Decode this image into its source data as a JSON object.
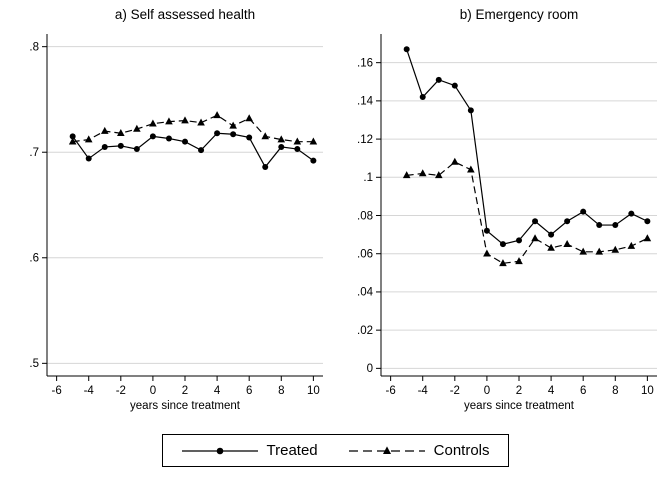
{
  "figure": {
    "legend": {
      "treated": "Treated",
      "controls": "Controls"
    }
  },
  "colors": {
    "line": "#000000",
    "grid": "#d6d6d6",
    "background": "#ffffff"
  },
  "chart_data": [
    {
      "type": "line",
      "title": "a) Self assessed health",
      "xlabel": "years since treatment",
      "xlim": [
        -6.6,
        10.6
      ],
      "ylim": [
        0.488,
        0.812
      ],
      "xticks": [
        {
          "v": -6,
          "label": "-6"
        },
        {
          "v": -4,
          "label": "-4"
        },
        {
          "v": -2,
          "label": "-2"
        },
        {
          "v": 0,
          "label": "0"
        },
        {
          "v": 2,
          "label": "2"
        },
        {
          "v": 4,
          "label": "4"
        },
        {
          "v": 6,
          "label": "6"
        },
        {
          "v": 8,
          "label": "8"
        },
        {
          "v": 10,
          "label": "10"
        }
      ],
      "yticks": [
        {
          "v": 0.5,
          "label": ".5"
        },
        {
          "v": 0.6,
          "label": ".6"
        },
        {
          "v": 0.7,
          "label": ".7"
        },
        {
          "v": 0.8,
          "label": ".8"
        }
      ],
      "x": [
        -5,
        -4,
        -3,
        -2,
        -1,
        0,
        1,
        2,
        3,
        4,
        5,
        6,
        7,
        8,
        9,
        10
      ],
      "series": [
        {
          "name": "Treated",
          "marker": "circle",
          "dash": "solid",
          "values": [
            0.715,
            0.694,
            0.705,
            0.706,
            0.703,
            0.715,
            0.713,
            0.71,
            0.702,
            0.718,
            0.717,
            0.714,
            0.686,
            0.705,
            0.703,
            0.692
          ]
        },
        {
          "name": "Controls",
          "marker": "triangle",
          "dash": "dashed",
          "values": [
            0.71,
            0.712,
            0.72,
            0.718,
            0.722,
            0.727,
            0.729,
            0.73,
            0.728,
            0.735,
            0.725,
            0.732,
            0.715,
            0.712,
            0.71,
            0.71
          ]
        }
      ]
    },
    {
      "type": "line",
      "title": "b) Emergency room",
      "xlabel": "years since treatment",
      "xlim": [
        -6.6,
        10.6
      ],
      "ylim": [
        -0.004,
        0.175
      ],
      "xticks": [
        {
          "v": -6,
          "label": "-6"
        },
        {
          "v": -4,
          "label": "-4"
        },
        {
          "v": -2,
          "label": "-2"
        },
        {
          "v": 0,
          "label": "0"
        },
        {
          "v": 2,
          "label": "2"
        },
        {
          "v": 4,
          "label": "4"
        },
        {
          "v": 6,
          "label": "6"
        },
        {
          "v": 8,
          "label": "8"
        },
        {
          "v": 10,
          "label": "10"
        }
      ],
      "yticks": [
        {
          "v": 0,
          "label": "0"
        },
        {
          "v": 0.02,
          "label": ".02"
        },
        {
          "v": 0.04,
          "label": ".04"
        },
        {
          "v": 0.06,
          "label": ".06"
        },
        {
          "v": 0.08,
          "label": ".08"
        },
        {
          "v": 0.1,
          "label": ".1"
        },
        {
          "v": 0.12,
          "label": ".12"
        },
        {
          "v": 0.14,
          "label": ".14"
        },
        {
          "v": 0.16,
          "label": ".16"
        }
      ],
      "x": [
        -5,
        -4,
        -3,
        -2,
        -1,
        0,
        1,
        2,
        3,
        4,
        5,
        6,
        7,
        8,
        9,
        10
      ],
      "series": [
        {
          "name": "Treated",
          "marker": "circle",
          "dash": "solid",
          "values": [
            0.167,
            0.142,
            0.151,
            0.148,
            0.135,
            0.072,
            0.065,
            0.067,
            0.077,
            0.07,
            0.077,
            0.082,
            0.075,
            0.075,
            0.081,
            0.077
          ]
        },
        {
          "name": "Controls",
          "marker": "triangle",
          "dash": "dashed",
          "values": [
            0.101,
            0.102,
            0.101,
            0.108,
            0.104,
            0.06,
            0.055,
            0.056,
            0.068,
            0.063,
            0.065,
            0.061,
            0.061,
            0.062,
            0.064,
            0.068
          ]
        }
      ]
    }
  ]
}
